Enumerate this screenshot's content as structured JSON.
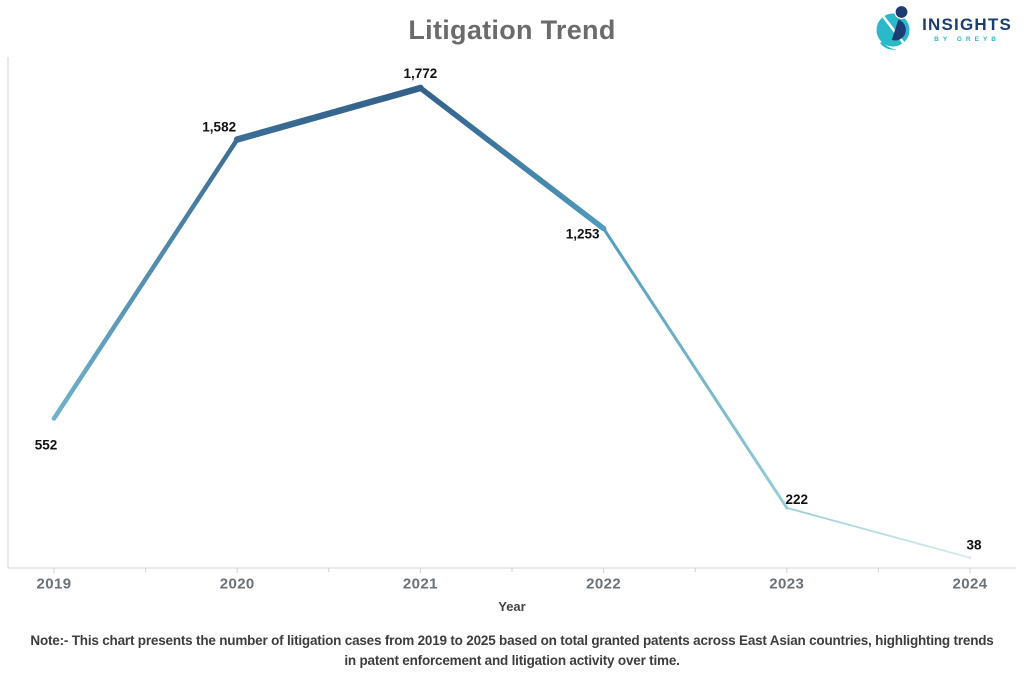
{
  "header": {
    "logo": {
      "name": "INSIGHTS",
      "byline": "BY GREYB",
      "navy": "#1d3c72",
      "teal": "#2bb9c9"
    }
  },
  "chart_data": {
    "type": "line",
    "title": "Litigation Trend",
    "categories": [
      "2019",
      "2020",
      "2021",
      "2022",
      "2023",
      "2024"
    ],
    "values": [
      552,
      1582,
      1772,
      1253,
      222,
      38
    ],
    "value_labels": [
      "552",
      "1,582",
      "1,772",
      "1,253",
      "222",
      "38"
    ],
    "xlabel": "Year",
    "ylabel": "",
    "ylim": [
      0,
      1900
    ],
    "grid": false,
    "legend": "none",
    "style": {
      "encoding": "line color and thickness scale with value (darker and thicker = more cases)",
      "point_colors": [
        "#6fb2cb",
        "#3a6d95",
        "#33608a",
        "#4f9cbe",
        "#97ced9",
        "#d6ecec"
      ],
      "segment_widths": [
        4.5,
        6.5,
        5.5,
        3,
        1.8
      ],
      "marker_radii": [
        2.2,
        3.2,
        3.2,
        2.6,
        1.7,
        1.4
      ],
      "label_color": "#111111",
      "axis_line_color": "#d6d6d6",
      "tick_color": "#d0d0d0",
      "tick_label_color": "#6a7279",
      "title_color": "#6b6b6b",
      "axis_title_color": "#444444"
    }
  },
  "note": {
    "line1": "Note:- This chart presents the number of litigation cases from 2019 to 2025 based on total granted patents across East Asian countries, highlighting trends",
    "line2": "in patent enforcement and litigation activity over time."
  }
}
